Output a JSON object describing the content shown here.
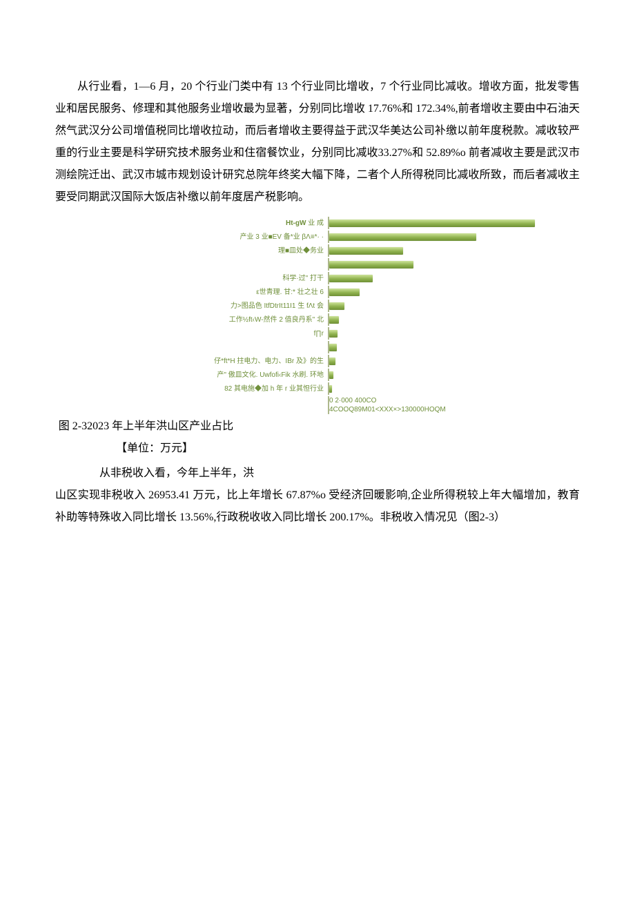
{
  "paragraph1": "从行业看，1—6 月，20 个行业门类中有 13 个行业同比增收，7 个行业同比减收。增收方面，批发零售业和居民服务、修理和其他服务业增收最为显著，分别同比增收 17.76%和 172.34%,前者增收主要由中石油天然气武汉分公司增值税同比增收拉动，而后者增收主要得益于武汉华美达公司补缴以前年度税款。减收较严重的行业主要是科学研究技术服务业和住宿餐饮业，分别同比减收33.27%和 52.89%o 前者减收主要是武汉市测绘院迁出、武汉市城市规划设计研究总院年终奖大幅下降，二者个人所得税同比减收所致，而后者减收主要受同期武汉国际大饭店补缴以前年度居产税影响。",
  "chart": {
    "type": "bar",
    "label_color": "#6f8f3a",
    "bar_gradient_top": "#cde39a",
    "bar_gradient_mid": "#8fb24e",
    "bar_gradient_bot": "#6f8f36",
    "axis_line_color": "#aeb88c",
    "background_color": "#ffffff",
    "label_fontsize": 10,
    "xlim": [
      0,
      300
    ],
    "rows": [
      {
        "label": "Ht-gW 业 成",
        "value": 298,
        "bold_first": true
      },
      {
        "label": "产业 3 业■EV 备*业 βΛ≡*·  ·",
        "value": 213
      },
      {
        "label": "理■皿处◆务业",
        "value": 107
      },
      {
        "label": "",
        "value": 122,
        "blank": true
      },
      {
        "label": "科学·过\" 打干",
        "value": 63
      },
      {
        "label": "ε世青理. 甘:*             壮之壮 6",
        "value": 44
      },
      {
        "label": "力>图品色 ItfDtrIt11I1 生 fΛt 会",
        "value": 22
      },
      {
        "label": "工作½ft‹W-然件 2 值良丹系\" 北",
        "value": 14
      },
      {
        "label": "f∏r",
        "value": 12
      },
      {
        "label": "",
        "value": 11,
        "blank": true
      },
      {
        "label": "仔*ft*H 拄电力、电力、IBr 及》的生",
        "value": 9
      },
      {
        "label": "产\" 傲皿文化. Uwfofi‹Fik 水刷. 环地",
        "value": 6
      },
      {
        "label": "82 其电施◆加 h 年 r 业其怛行业",
        "value": 4
      }
    ],
    "axis_ticks_line1": "0        2·000      400CO",
    "axis_ticks_line2": "4COOQ89M01<XXX×>130000HOQM"
  },
  "caption_line1": "图 2-32023 年上半年洪山区产业占比",
  "caption_line2": "【单位：万元】",
  "after_chart_line": "从非税收入看，今年上半年，洪",
  "paragraph2": "山区实现非税收入 26953.41 万元，比上年增长 67.87%o 受经济回暖影响,企业所得税较上年大幅增加，教育补助等特殊收入同比增长 13.56%,行政税收收入同比增长 200.17%。非税收入情况见（图2-3）"
}
